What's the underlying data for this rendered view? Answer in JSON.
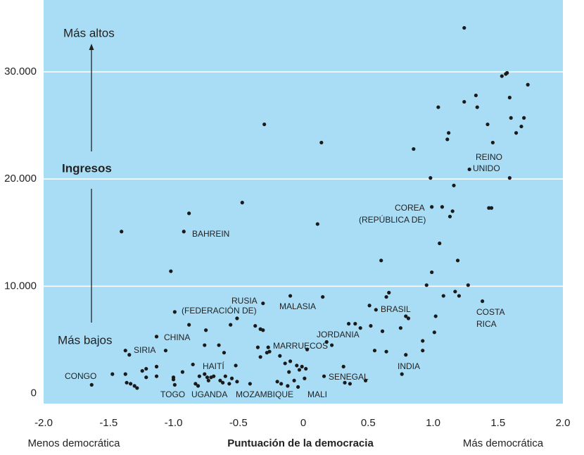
{
  "chart_data": {
    "type": "scatter",
    "y_label": "Ingresos",
    "y_top_label": "Más altos",
    "y_bottom_label": "Más bajos",
    "x_label": "Puntuación de  la democracia",
    "x_left_label": "Menos democrática",
    "x_right_label": "Más democrática",
    "xlim": [
      -2.0,
      2.0
    ],
    "ylim": [
      -950,
      36700
    ],
    "xticks": [
      {
        "value": -2.0,
        "label": "-2.0"
      },
      -1.5,
      {
        "value": -1.0,
        "label": "-1.0"
      },
      -0.5,
      0,
      0.5,
      {
        "value": 1.0,
        "label": "1.0"
      },
      1.5,
      {
        "value": 2.0,
        "label": "2.0"
      }
    ],
    "yticks": [
      0,
      {
        "value": 10000,
        "label": "10.000"
      },
      {
        "value": 20000,
        "label": "20.000"
      },
      {
        "value": 30000,
        "label": "30.000"
      }
    ],
    "grid": true,
    "background": "#a9ddf6",
    "annotations": [
      "CONGO",
      "SIRIA",
      "CHINA",
      "TOGO",
      "UGANDA",
      "HAITÍ",
      "MOZAMBIQUE",
      "BAHREIN",
      "RUSIA",
      "(FEDERACIÓN DE)",
      "MALASIA",
      "MARRUECOS",
      "MALI",
      "JORDANIA",
      "SENEGAL",
      "BRASIL",
      "INDIA",
      "COREA",
      "(REPÚBLICA DE)",
      "REINO",
      "UNIDO",
      "COSTA",
      "RICA"
    ],
    "series": [
      {
        "color": "#1a1a1a",
        "x": [
          -1.63,
          -1.47,
          -1.37,
          -1.36,
          -1.33,
          -1.3,
          -1.28,
          -1.37,
          -1.34,
          -1.4,
          -1.24,
          -1.21,
          -1.21,
          -1.13,
          -1.13,
          -1.13,
          -1.06,
          -1.02,
          -1.0,
          -1.0,
          -0.99,
          -0.99,
          -0.93,
          -0.92,
          -0.88,
          -0.88,
          -0.85,
          -0.83,
          -0.81,
          -0.8,
          -0.76,
          -0.76,
          -0.75,
          -0.74,
          -0.73,
          -0.71,
          -0.69,
          -0.65,
          -0.64,
          -0.62,
          -0.61,
          -0.6,
          -0.57,
          -0.56,
          -0.55,
          -0.52,
          -0.51,
          -0.47,
          -0.51,
          -0.41,
          -0.37,
          -0.35,
          -0.33,
          -0.31,
          -0.31,
          -0.3,
          -0.33,
          -0.28,
          -0.27,
          -0.26,
          -0.2,
          -0.17,
          -0.18,
          -0.14,
          -0.12,
          -0.1,
          -0.1,
          -0.11,
          -0.07,
          -0.05,
          -0.04,
          -0.03,
          -0.01,
          0.01,
          0.02,
          0.03,
          0.11,
          0.14,
          0.15,
          0.16,
          0.18,
          0.22,
          0.31,
          0.32,
          0.36,
          0.35,
          0.4,
          0.44,
          0.48,
          0.51,
          0.52,
          0.55,
          0.56,
          0.61,
          0.6,
          0.64,
          0.66,
          0.64,
          0.75,
          0.76,
          0.79,
          0.79,
          0.81,
          0.85,
          0.92,
          0.92,
          0.95,
          0.98,
          0.99,
          0.99,
          1.01,
          1.02,
          1.04,
          1.05,
          1.07,
          1.08,
          1.11,
          1.12,
          1.13,
          1.15,
          1.16,
          1.17,
          1.19,
          1.2,
          1.24,
          1.24,
          1.27,
          1.28,
          1.33,
          1.34,
          1.38,
          1.42,
          1.43,
          1.45,
          1.46,
          1.53,
          1.56,
          1.57,
          1.59,
          1.59,
          1.6,
          1.64,
          1.68,
          1.7,
          1.73
        ],
        "values": [
          800,
          1800,
          1800,
          1000,
          900,
          700,
          500,
          4000,
          3600,
          15100,
          2100,
          2300,
          1500,
          2500,
          1600,
          5300,
          4000,
          11400,
          1500,
          1300,
          800,
          7600,
          2000,
          15100,
          16800,
          6400,
          2700,
          900,
          700,
          1600,
          1800,
          4500,
          5900,
          1500,
          1200,
          1500,
          1600,
          4500,
          1200,
          1000,
          3800,
          1600,
          900,
          6400,
          1400,
          2600,
          7000,
          17800,
          1100,
          900,
          6300,
          4300,
          6000,
          5900,
          8400,
          25100,
          3400,
          3800,
          4300,
          3900,
          1100,
          900,
          3500,
          2800,
          700,
          3000,
          9100,
          2000,
          1200,
          2600,
          600,
          2200,
          2500,
          1400,
          2300,
          4100,
          15800,
          23400,
          9000,
          1600,
          4800,
          4500,
          2500,
          1000,
          900,
          6500,
          6500,
          6100,
          1200,
          8200,
          6300,
          4000,
          7800,
          5800,
          12400,
          9000,
          9400,
          3900,
          6100,
          1800,
          7200,
          3600,
          7000,
          22800,
          4900,
          4000,
          10100,
          20100,
          17400,
          11300,
          5700,
          7200,
          26700,
          14000,
          17400,
          9100,
          23700,
          24300,
          16500,
          17000,
          19400,
          9500,
          12400,
          9100,
          34100,
          27200,
          10100,
          20900,
          27800,
          26700,
          8600,
          25100,
          17300,
          17300,
          23400,
          29600,
          29800,
          29900,
          27600,
          20100,
          25700,
          24300,
          24900,
          25700,
          28800
        ]
      }
    ]
  }
}
